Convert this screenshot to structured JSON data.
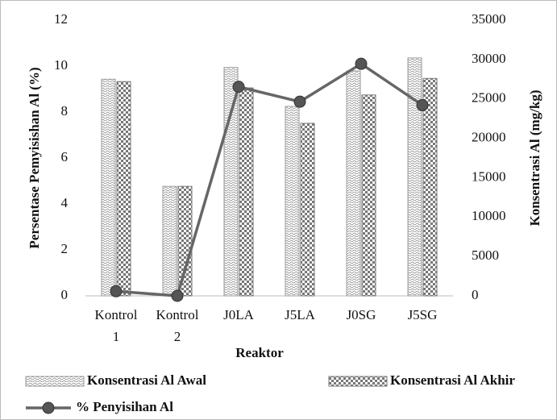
{
  "chart_data": {
    "type": "bar",
    "x_label": "Reaktor",
    "y_label": "Persentase Pemyisishan Al (%)",
    "y2_label": "Konsentrasi Al (mg/kg)",
    "categories": [
      "Kontrol 1",
      "Kontrol 2",
      "J0LA",
      "J5LA",
      "J0SG",
      "J5SG"
    ],
    "ylim": [
      0,
      12
    ],
    "yticks": [
      0,
      2,
      4,
      6,
      8,
      10,
      12
    ],
    "y2lim": [
      0,
      35000
    ],
    "y2ticks": [
      0,
      5000,
      10000,
      15000,
      20000,
      25000,
      30000,
      35000
    ],
    "series": [
      {
        "name": "Konsentrasi Al Awal",
        "type": "bar",
        "axis": "y2",
        "color": "#9a9a9a",
        "values": [
          27500,
          13900,
          29000,
          24050,
          28550,
          30200
        ]
      },
      {
        "name": "Konsentrasi Al Akhir",
        "type": "bar",
        "axis": "y2",
        "color": "#777777",
        "values": [
          27200,
          13900,
          26400,
          21900,
          25500,
          27600
        ]
      },
      {
        "name": "% Penyisihan Al",
        "type": "line",
        "axis": "y",
        "color": "#666666",
        "values": [
          0.2,
          0.0,
          9.1,
          8.45,
          10.1,
          8.3
        ]
      }
    ]
  }
}
